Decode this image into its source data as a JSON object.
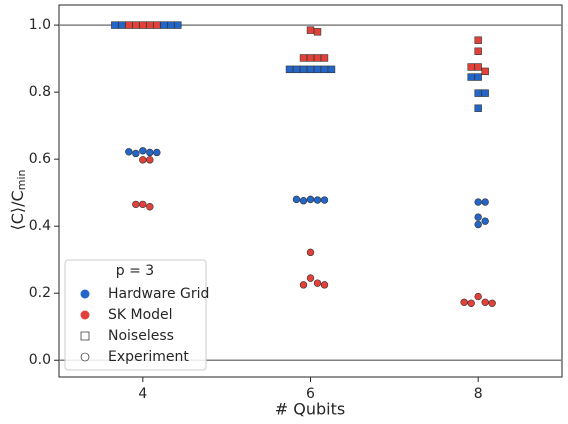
{
  "chart_data": {
    "type": "swarm",
    "categories": [
      "4",
      "6",
      "8"
    ],
    "xlabel": "# Qubits",
    "ylabel": "⟨C⟩/C",
    "ylabel_subscript": "min",
    "ylim": [
      -0.05,
      1.06
    ],
    "yticks": [
      {
        "value": 0,
        "label": "0.0"
      },
      0.2,
      0.4,
      0.6,
      0.8,
      {
        "value": 1,
        "label": "1.0"
      }
    ],
    "hlines": [
      0,
      1
    ],
    "markers": [
      {
        "name": "Noiseless",
        "shape": "square"
      },
      {
        "name": "Experiment",
        "shape": "circle"
      }
    ],
    "legend_title": "p = 3",
    "legend": "lower left",
    "series": [
      {
        "name": "SK Model",
        "color": "#e2413a",
        "values_by_marker": [
          [
            [
              1,
              1,
              1,
              1,
              1
            ],
            [
              0.985,
              0.98,
              0.902,
              0.902,
              0.902,
              0.902
            ],
            [
              0.955,
              0.922,
              0.875,
              0.862,
              0.875
            ]
          ],
          [
            [
              0.598,
              0.598,
              0.465,
              0.458,
              0.465
            ],
            [
              0.322,
              0.245,
              0.23,
              0.225,
              0.225
            ],
            [
              0.19,
              0.173,
              0.17,
              0.17,
              0.173
            ]
          ]
        ]
      },
      {
        "name": "Hardware Grid",
        "color": "#2366c8",
        "values_by_marker": [
          [
            [
              1,
              1,
              1,
              1,
              1
            ],
            [
              0.868,
              0.868,
              0.868,
              0.868,
              0.868,
              0.868,
              0.868
            ],
            [
              0.845,
              0.845,
              0.797,
              0.797,
              0.752
            ]
          ],
          [
            [
              0.625,
              0.62,
              0.617,
              0.62,
              0.622
            ],
            [
              0.48,
              0.478,
              0.476,
              0.478,
              0.48
            ],
            [
              0.472,
              0.472,
              0.427,
              0.415,
              0.405
            ]
          ]
        ]
      }
    ]
  }
}
